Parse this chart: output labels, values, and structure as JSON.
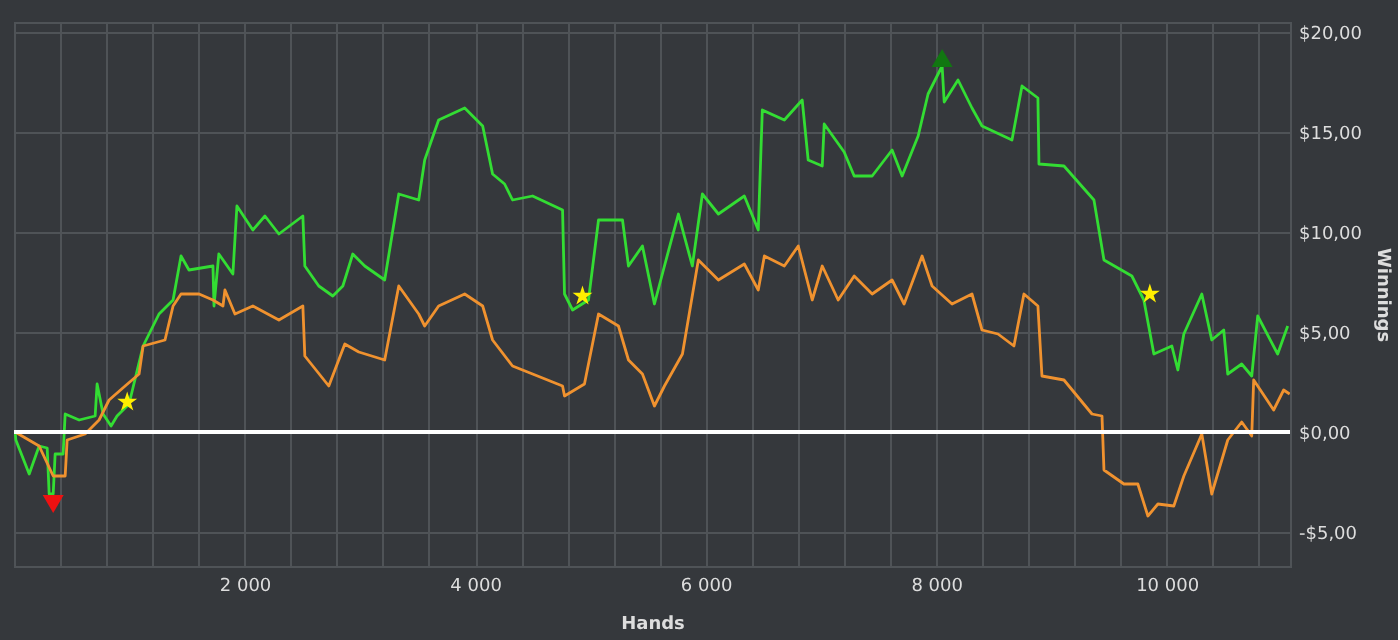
{
  "chart_data": {
    "type": "line",
    "xlabel": "Hands",
    "ylabel": "Winnings",
    "xlim": [
      0,
      11070
    ],
    "ylim": [
      -6.7,
      20.5
    ],
    "xticks": [
      {
        "value": 400,
        "label": null
      },
      {
        "value": 800,
        "label": null
      },
      {
        "value": 1200,
        "label": null
      },
      {
        "value": 1600,
        "label": null
      },
      {
        "value": 2000,
        "label": "2 000"
      },
      {
        "value": 2400,
        "label": null
      },
      {
        "value": 2800,
        "label": null
      },
      {
        "value": 3200,
        "label": null
      },
      {
        "value": 3600,
        "label": null
      },
      {
        "value": 4000,
        "label": "4 000"
      },
      {
        "value": 4400,
        "label": null
      },
      {
        "value": 4800,
        "label": null
      },
      {
        "value": 5200,
        "label": null
      },
      {
        "value": 5600,
        "label": null
      },
      {
        "value": 6000,
        "label": "6 000"
      },
      {
        "value": 6400,
        "label": null
      },
      {
        "value": 6800,
        "label": null
      },
      {
        "value": 7200,
        "label": null
      },
      {
        "value": 7600,
        "label": null
      },
      {
        "value": 8000,
        "label": "8 000"
      },
      {
        "value": 8400,
        "label": null
      },
      {
        "value": 8800,
        "label": null
      },
      {
        "value": 9200,
        "label": null
      },
      {
        "value": 9600,
        "label": null
      },
      {
        "value": 10000,
        "label": "10 000"
      },
      {
        "value": 10400,
        "label": null
      },
      {
        "value": 10800,
        "label": null
      }
    ],
    "yticks": [
      {
        "value": -5,
        "label": "-$5,00"
      },
      {
        "value": 0,
        "label": "$0,00"
      },
      {
        "value": 5,
        "label": "$5,00"
      },
      {
        "value": 10,
        "label": "$10,00"
      },
      {
        "value": 15,
        "label": "$15,00"
      },
      {
        "value": 20,
        "label": "$20,00"
      }
    ],
    "grid": true,
    "ref_lines": [
      {
        "axis": "y",
        "value": 0,
        "label": null,
        "color": "#ffffff"
      }
    ],
    "series": [
      {
        "color": "#33dd33",
        "x": [
          10,
          16,
          132,
          218,
          288,
          305,
          340,
          357,
          426,
          444,
          565,
          704,
          721,
          773,
          842,
          894,
          998,
          1120,
          1258,
          1380,
          1449,
          1518,
          1726,
          1735,
          1777,
          1899,
          1934,
          2072,
          2177,
          2298,
          2506,
          2523,
          2644,
          2766,
          2853,
          2939,
          3043,
          3216,
          3338,
          3511,
          3563,
          3684,
          3910,
          4066,
          4152,
          4256,
          4325,
          4499,
          4759,
          4776,
          4846,
          4984,
          5071,
          5279,
          5331,
          5452,
          5556,
          5643,
          5764,
          5885,
          5972,
          6111,
          6336,
          6457,
          6492,
          6683,
          6838,
          6890,
          7012,
          7029,
          7202,
          7289,
          7445,
          7618,
          7705,
          7844,
          7930,
          8052,
          8070,
          8190,
          8311,
          8398,
          8658,
          8745,
          8883,
          8892,
          9109,
          9369,
          9456,
          9698,
          9802,
          9889,
          10045,
          10097,
          10149,
          10305,
          10391,
          10495,
          10530,
          10651,
          10738,
          10790,
          10963,
          11050
        ],
        "values": [
          0,
          -0.4,
          -2.1,
          -0.7,
          -0.8,
          -3.1,
          -3.1,
          -1.1,
          -1.1,
          0.9,
          0.6,
          0.8,
          2.4,
          0.9,
          0.3,
          0.8,
          1.4,
          4.3,
          5.9,
          6.6,
          8.8,
          8.1,
          8.3,
          6.3,
          8.9,
          7.9,
          11.3,
          10.1,
          10.8,
          9.9,
          10.8,
          8.3,
          7.3,
          6.8,
          7.3,
          8.9,
          8.3,
          7.6,
          11.9,
          11.6,
          13.6,
          15.6,
          16.2,
          15.3,
          12.9,
          12.4,
          11.6,
          11.8,
          11.1,
          6.9,
          6.1,
          6.6,
          10.6,
          10.6,
          8.3,
          9.3,
          6.4,
          8.3,
          10.9,
          8.3,
          11.9,
          10.9,
          11.8,
          10.1,
          16.1,
          15.6,
          16.6,
          13.6,
          13.3,
          15.4,
          14.0,
          12.8,
          12.8,
          14.1,
          12.8,
          14.8,
          16.9,
          18.3,
          16.5,
          17.6,
          16.2,
          15.3,
          14.6,
          17.3,
          16.7,
          13.4,
          13.3,
          11.6,
          8.6,
          7.8,
          6.6,
          3.9,
          4.3,
          3.1,
          4.9,
          6.9,
          4.6,
          5.1,
          2.9,
          3.4,
          2.8,
          5.8,
          3.9,
          5.3
        ]
      },
      {
        "color": "#f0922f",
        "x": [
          10,
          218,
          340,
          444,
          461,
          617,
          738,
          825,
          964,
          1085,
          1120,
          1310,
          1380,
          1449,
          1605,
          1726,
          1813,
          1830,
          1917,
          2072,
          2298,
          2506,
          2523,
          2731,
          2870,
          2991,
          3216,
          3338,
          3511,
          3563,
          3684,
          3910,
          4066,
          4152,
          4325,
          4499,
          4759,
          4776,
          4949,
          5071,
          5244,
          5331,
          5452,
          5556,
          5643,
          5799,
          5937,
          6111,
          6336,
          6457,
          6510,
          6683,
          6804,
          6925,
          7012,
          7150,
          7289,
          7445,
          7618,
          7722,
          7878,
          7965,
          8138,
          8311,
          8398,
          8537,
          8675,
          8762,
          8883,
          8918,
          9109,
          9352,
          9439,
          9456,
          9629,
          9750,
          9837,
          9924,
          10062,
          10149,
          10305,
          10391,
          10530,
          10651,
          10738,
          10755,
          10928,
          11015,
          11067
        ],
        "values": [
          0,
          -0.7,
          -2.2,
          -2.2,
          -0.4,
          -0.1,
          0.6,
          1.6,
          2.3,
          2.9,
          4.3,
          4.6,
          6.3,
          6.9,
          6.9,
          6.6,
          6.3,
          7.1,
          5.9,
          6.3,
          5.6,
          6.3,
          3.8,
          2.3,
          4.4,
          4.0,
          3.6,
          7.3,
          5.9,
          5.3,
          6.3,
          6.9,
          6.3,
          4.6,
          3.3,
          2.9,
          2.3,
          1.8,
          2.4,
          5.9,
          5.3,
          3.6,
          2.9,
          1.3,
          2.3,
          3.9,
          8.6,
          7.6,
          8.4,
          7.1,
          8.8,
          8.3,
          9.3,
          6.6,
          8.3,
          6.6,
          7.8,
          6.9,
          7.6,
          6.4,
          8.8,
          7.3,
          6.4,
          6.9,
          5.1,
          4.9,
          4.3,
          6.9,
          6.3,
          2.8,
          2.6,
          0.9,
          0.8,
          -1.9,
          -2.6,
          -2.6,
          -4.2,
          -3.6,
          -3.7,
          -2.2,
          -0.1,
          -3.1,
          -0.4,
          0.5,
          -0.2,
          2.6,
          1.1,
          2.1,
          1.9
        ]
      },
      {
        "type": "scatter",
        "marker": "star",
        "color": "#ffee00",
        "x": [
          982,
          4932,
          9854
        ],
        "values": [
          1.5,
          6.8,
          6.9
        ]
      },
      {
        "type": "scatter",
        "marker": "triangle-down",
        "color": "#ee1111",
        "x": [
          340
        ],
        "values": [
          -3.6
        ]
      },
      {
        "type": "scatter",
        "marker": "triangle",
        "color": "#117711",
        "x": [
          8052
        ],
        "values": [
          18.7
        ]
      }
    ]
  }
}
